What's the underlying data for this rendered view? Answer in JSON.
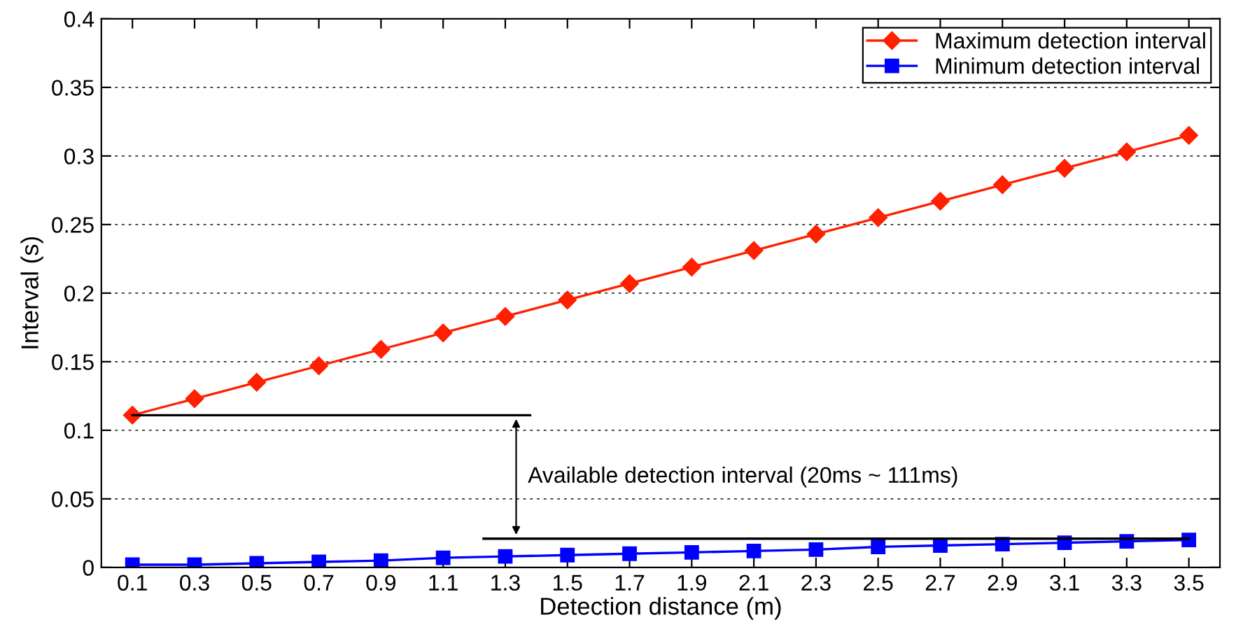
{
  "chart_data": {
    "type": "line",
    "xlabel": "Detection distance (m)",
    "ylabel": "Interval (s)",
    "x": [
      0.1,
      0.3,
      0.5,
      0.7,
      0.9,
      1.1,
      1.3,
      1.5,
      1.7,
      1.9,
      2.1,
      2.3,
      2.5,
      2.7,
      2.9,
      3.1,
      3.3,
      3.5
    ],
    "series": [
      {
        "name": "Maximum detection interval",
        "color": "#ff2000",
        "marker": "diamond",
        "values": [
          0.111,
          0.123,
          0.135,
          0.147,
          0.159,
          0.171,
          0.183,
          0.195,
          0.207,
          0.219,
          0.231,
          0.243,
          0.255,
          0.267,
          0.279,
          0.291,
          0.303,
          0.315
        ]
      },
      {
        "name": "Minimum detection interval",
        "color": "#0000ff",
        "marker": "square",
        "values": [
          0.002,
          0.002,
          0.003,
          0.004,
          0.005,
          0.007,
          0.008,
          0.009,
          0.01,
          0.011,
          0.012,
          0.013,
          0.015,
          0.016,
          0.017,
          0.018,
          0.019,
          0.02
        ]
      },
      {
        "color": "#000000",
        "marker": "none",
        "x": [
          0.1,
          1.38
        ],
        "values": [
          0.111,
          0.111
        ]
      },
      {
        "color": "#000000",
        "marker": "none",
        "x": [
          1.23,
          3.5
        ],
        "values": [
          0.021,
          0.021
        ]
      }
    ],
    "xlim": [
      0,
      3.6
    ],
    "ylim": [
      0,
      0.4
    ],
    "xticks": [
      0.1,
      0.3,
      0.5,
      0.7,
      0.9,
      1.1,
      1.3,
      1.5,
      1.7,
      1.9,
      2.1,
      2.3,
      2.5,
      2.7,
      2.9,
      3.1,
      3.3,
      3.5
    ],
    "yticks": [
      0,
      0.05,
      0.1,
      0.15,
      0.2,
      0.25,
      0.3,
      0.35,
      0.4
    ],
    "annotations": [
      "Available detection interval (20ms ~ 111ms)"
    ],
    "grid": "y",
    "legend": "top right",
    "line_style": "solid"
  }
}
